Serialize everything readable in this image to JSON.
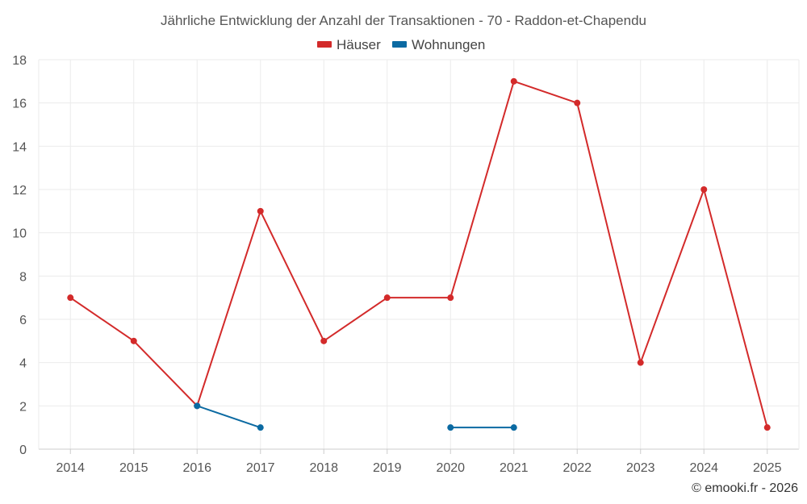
{
  "chart_data": {
    "type": "line",
    "title": "Jährliche Entwicklung der Anzahl der Transaktionen - 70 - Raddon-et-Chapendu",
    "categories": [
      "2014",
      "2015",
      "2016",
      "2017",
      "2018",
      "2019",
      "2020",
      "2021",
      "2022",
      "2023",
      "2024",
      "2025"
    ],
    "ylim": [
      0,
      18
    ],
    "yticks": [
      0,
      2,
      4,
      6,
      8,
      10,
      12,
      14,
      16,
      18
    ],
    "grid": true,
    "legend_position": "top-center",
    "series": [
      {
        "name": "Häuser",
        "color": "#d32a2a",
        "values": [
          7,
          5,
          2,
          11,
          5,
          7,
          7,
          17,
          16,
          4,
          12,
          1
        ]
      },
      {
        "name": "Wohnungen",
        "color": "#0b6aa2",
        "values": [
          null,
          null,
          2,
          1,
          null,
          null,
          1,
          1,
          null,
          null,
          null,
          null
        ]
      }
    ],
    "credit": "© emooki.fr - 2026"
  }
}
